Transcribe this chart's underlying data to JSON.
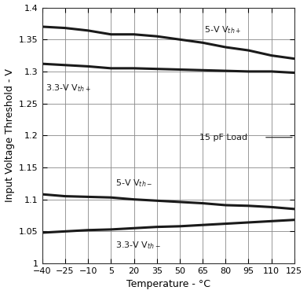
{
  "temperature": [
    -40,
    -25,
    -10,
    5,
    20,
    35,
    50,
    65,
    80,
    95,
    110,
    125
  ],
  "vth_plus_5V": [
    1.37,
    1.368,
    1.364,
    1.358,
    1.358,
    1.355,
    1.35,
    1.345,
    1.338,
    1.333,
    1.325,
    1.32
  ],
  "vth_plus_33V": [
    1.312,
    1.31,
    1.308,
    1.305,
    1.305,
    1.304,
    1.303,
    1.302,
    1.301,
    1.3,
    1.3,
    1.298
  ],
  "vth_minus_5V": [
    1.108,
    1.105,
    1.104,
    1.103,
    1.1,
    1.098,
    1.096,
    1.094,
    1.091,
    1.09,
    1.088,
    1.085
  ],
  "vth_minus_33V": [
    1.048,
    1.05,
    1.052,
    1.053,
    1.055,
    1.057,
    1.058,
    1.06,
    1.062,
    1.064,
    1.066,
    1.068
  ],
  "xlabel": "Temperature - °C",
  "ylabel": "Input Voltage Threshold - V",
  "label_5V_plus": "5-V V$_{th+}$",
  "label_33V_plus": "3.3-V V$_{th+}$",
  "label_5V_minus": "5-V V$_{th-}$",
  "label_33V_minus": "3.3-V V$_{th-}$",
  "annotation": "15 pF Load",
  "xlim": [
    -40,
    125
  ],
  "ylim": [
    1.0,
    1.4
  ],
  "xticks": [
    -40,
    -25,
    -10,
    5,
    20,
    35,
    50,
    65,
    80,
    95,
    110,
    125
  ],
  "yticks": [
    1.0,
    1.05,
    1.1,
    1.15,
    1.2,
    1.25,
    1.3,
    1.35,
    1.4
  ],
  "ytick_labels": [
    "1",
    "1.05",
    "1.1",
    "1.15",
    "1.2",
    "1.25",
    "1.3",
    "1.35",
    "1.4"
  ],
  "line_color": "#1a1a1a",
  "line_width": 2.2,
  "grid_color": "#888888",
  "bg_color": "#ffffff"
}
